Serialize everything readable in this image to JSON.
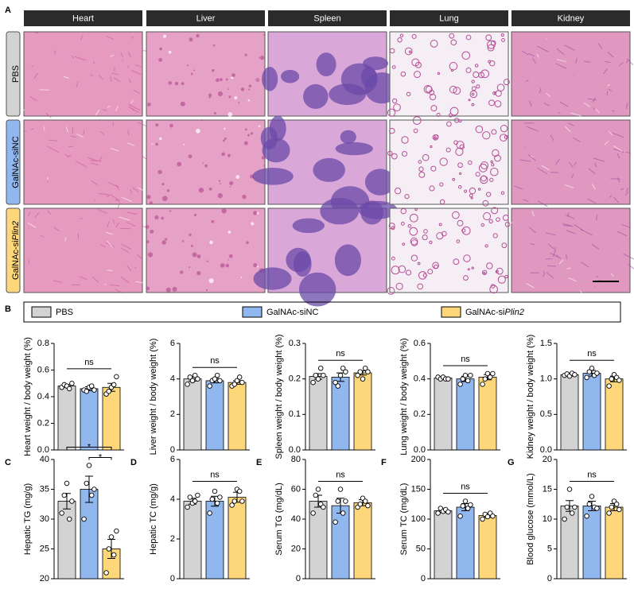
{
  "histology": {
    "panel": "A",
    "organs": [
      "Heart",
      "Liver",
      "Spleen",
      "Lung",
      "Kidney"
    ]
  },
  "legend": {
    "panel": "B",
    "items": [
      {
        "name": {
          "text": "PBS"
        },
        "color": "#d3d3d3"
      },
      {
        "name": {
          "text": "GalNAc-siNC"
        },
        "color": "#90b8ee"
      },
      {
        "name": {
          "text": "GalNAc-si",
          "italic": "Plin2"
        },
        "color": "#fdd77a"
      }
    ]
  },
  "chart_data": [
    {
      "type": "bar",
      "ylabel": "Heart weight / body weight (%)",
      "values": [
        0.48,
        0.46,
        0.47
      ],
      "errors": [
        0.01,
        0.015,
        0.03
      ],
      "points": [
        [
          0.47,
          0.49,
          0.48,
          0.46,
          0.5
        ],
        [
          0.45,
          0.44,
          0.47,
          0.48,
          0.45
        ],
        [
          0.42,
          0.44,
          0.47,
          0.49,
          0.55
        ]
      ],
      "ylim": [
        0,
        0.8
      ],
      "yticks": [
        {
          "value": 0,
          "label": "0.0"
        },
        0.2,
        0.4,
        0.6,
        0.8
      ],
      "annotations": [
        {
          "text": "ns",
          "between": [
            0,
            2
          ]
        }
      ]
    },
    {
      "type": "bar",
      "ylabel": "Liver weight / body weight (%)",
      "values": [
        4.0,
        3.9,
        3.8
      ],
      "errors": [
        0.12,
        0.12,
        0.1
      ],
      "points": [
        [
          3.7,
          4.1,
          3.9,
          4.2,
          4.0
        ],
        [
          3.6,
          3.9,
          4.0,
          4.2,
          3.9
        ],
        [
          3.6,
          3.7,
          3.9,
          4.1,
          3.8
        ]
      ],
      "ylim": [
        0,
        6
      ],
      "yticks": [
        0,
        2,
        4,
        6
      ],
      "annotations": [
        {
          "text": "ns",
          "between": [
            0,
            2
          ]
        }
      ]
    },
    {
      "type": "bar",
      "ylabel": "Spleen weight / body weight (%)",
      "values": [
        0.207,
        0.205,
        0.217
      ],
      "errors": [
        0.008,
        0.012,
        0.006
      ],
      "points": [
        [
          0.19,
          0.21,
          0.2,
          0.23,
          0.21
        ],
        [
          0.19,
          0.18,
          0.21,
          0.23,
          0.22
        ],
        [
          0.21,
          0.22,
          0.2,
          0.23,
          0.22
        ]
      ],
      "ylim": [
        0,
        0.3
      ],
      "yticks": [
        {
          "value": 0,
          "label": "0.0"
        },
        0.1,
        0.2,
        0.3
      ],
      "annotations": [
        {
          "text": "ns",
          "between": [
            0,
            2
          ]
        }
      ]
    },
    {
      "type": "bar",
      "ylabel": "Lung weight / body weight (%)",
      "values": [
        0.405,
        0.4,
        0.41
      ],
      "errors": [
        0.005,
        0.015,
        0.015
      ],
      "points": [
        [
          0.41,
          0.4,
          0.41,
          0.4,
          0.4
        ],
        [
          0.37,
          0.4,
          0.42,
          0.39,
          0.42
        ],
        [
          0.37,
          0.4,
          0.43,
          0.41,
          0.43
        ]
      ],
      "ylim": [
        0,
        0.6
      ],
      "yticks": [
        {
          "value": 0,
          "label": "0.0"
        },
        0.2,
        0.4,
        0.6
      ],
      "annotations": [
        {
          "text": "ns",
          "between": [
            0,
            2
          ]
        }
      ]
    },
    {
      "type": "bar",
      "ylabel": "Kidney weight / body weight (%)",
      "values": [
        1.06,
        1.08,
        1.0
      ],
      "errors": [
        0.02,
        0.04,
        0.04
      ],
      "points": [
        [
          1.05,
          1.07,
          1.04,
          1.08,
          1.06
        ],
        [
          1.02,
          1.1,
          1.15,
          1.05,
          1.08
        ],
        [
          0.9,
          1.0,
          1.06,
          1.02,
          0.98
        ]
      ],
      "ylim": [
        0,
        1.5
      ],
      "yticks": [
        {
          "value": 0,
          "label": "0.0"
        },
        0.5,
        {
          "value": 1,
          "label": "1.0"
        },
        1.5
      ],
      "annotations": [
        {
          "text": "ns",
          "between": [
            0,
            2
          ]
        }
      ]
    },
    {
      "type": "bar",
      "panel": "C",
      "ylabel": "Hepatic TG (mg/g)",
      "values": [
        33,
        35,
        25
      ],
      "errors": [
        1.3,
        2.2,
        1.6
      ],
      "points": [
        [
          31,
          34,
          36,
          30,
          33
        ],
        [
          30,
          36,
          39,
          34,
          35
        ],
        [
          21,
          25,
          27,
          24,
          28
        ]
      ],
      "ylim": [
        20,
        40
      ],
      "yticks": [
        20,
        25,
        30,
        35,
        40
      ],
      "annotations": [
        {
          "text": "*",
          "between": [
            0,
            2
          ]
        },
        {
          "text": "*",
          "between": [
            1,
            2
          ]
        }
      ]
    },
    {
      "type": "bar",
      "panel": "D",
      "ylabel": "Hepatic TC (mg/g)",
      "values": [
        3.9,
        3.9,
        4.1
      ],
      "errors": [
        0.15,
        0.25,
        0.25
      ],
      "points": [
        [
          3.6,
          4.1,
          3.8,
          3.9,
          4.2
        ],
        [
          3.3,
          4.0,
          4.4,
          3.8,
          4.1
        ],
        [
          3.7,
          3.9,
          4.5,
          4.4,
          3.9
        ]
      ],
      "ylim": [
        0,
        6
      ],
      "yticks": [
        0,
        2,
        4,
        6
      ],
      "annotations": [
        {
          "text": "ns",
          "between": [
            0,
            2
          ]
        }
      ]
    },
    {
      "type": "bar",
      "panel": "E",
      "ylabel": "Serum TG (mg/dL)",
      "values": [
        52,
        49,
        51
      ],
      "errors": [
        4,
        5,
        2
      ],
      "points": [
        [
          44,
          56,
          60,
          50,
          48
        ],
        [
          38,
          52,
          60,
          44,
          52
        ],
        [
          48,
          50,
          54,
          52,
          49
        ]
      ],
      "ylim": [
        0,
        80
      ],
      "yticks": [
        0,
        20,
        40,
        60,
        80
      ],
      "annotations": [
        {
          "text": "ns",
          "between": [
            0,
            2
          ]
        }
      ]
    },
    {
      "type": "bar",
      "panel": "F",
      "ylabel": "Serum TC (mg/dL)",
      "values": [
        114,
        120,
        106
      ],
      "errors": [
        3,
        6,
        3
      ],
      "points": [
        [
          110,
          118,
          113,
          116,
          112
        ],
        [
          105,
          122,
          130,
          118,
          124
        ],
        [
          100,
          108,
          104,
          110,
          105
        ]
      ],
      "ylim": [
        0,
        200
      ],
      "yticks": [
        0,
        50,
        100,
        150,
        200
      ],
      "annotations": [
        {
          "text": "ns",
          "between": [
            0,
            2
          ]
        }
      ]
    },
    {
      "type": "bar",
      "panel": "G",
      "ylabel": "Blood glucose (mmol/L)",
      "values": [
        12.2,
        12.2,
        12.0
      ],
      "errors": [
        0.9,
        0.8,
        0.6
      ],
      "points": [
        [
          10,
          12,
          15,
          11,
          12
        ],
        [
          10.5,
          12.5,
          13.8,
          12,
          11.8
        ],
        [
          11,
          12,
          13,
          12.5,
          11.6
        ]
      ],
      "ylim": [
        0,
        20
      ],
      "yticks": [
        0,
        5,
        10,
        15,
        20
      ],
      "annotations": [
        {
          "text": "ns",
          "between": [
            0,
            2
          ]
        }
      ]
    }
  ]
}
